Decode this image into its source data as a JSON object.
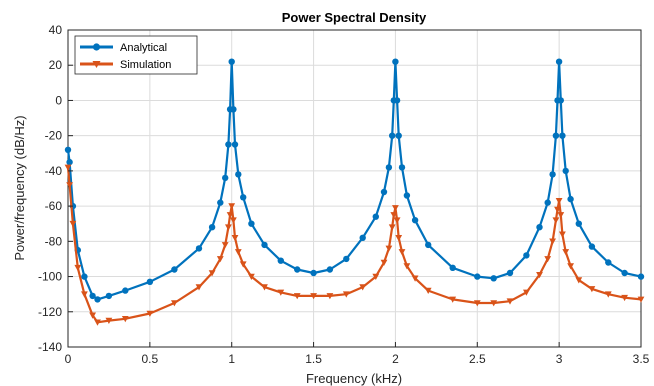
{
  "chart_data": {
    "type": "line",
    "title": "Power Spectral Density",
    "xlabel": "Frequency (kHz)",
    "ylabel": "Power/frequency (dB/Hz)",
    "xlim": [
      0,
      3.5
    ],
    "ylim": [
      -140,
      40
    ],
    "xticks": [
      0,
      0.5,
      1,
      1.5,
      2,
      2.5,
      3,
      3.5
    ],
    "yticks": [
      40,
      20,
      0,
      -20,
      -40,
      -60,
      -80,
      -100,
      -120,
      -140
    ],
    "xtick_labels": [
      "0",
      "0.5",
      "1",
      "1.5",
      "2",
      "2.5",
      "3",
      "3.5"
    ],
    "ytick_labels": [
      "40",
      "20",
      "0",
      "-20",
      "-40",
      "-60",
      "-80",
      "-100",
      "-120",
      "-140"
    ],
    "grid": true,
    "legend_position": "top-left",
    "series": [
      {
        "name": "Analytical",
        "color": "#0072BD",
        "marker": "circle",
        "x": [
          0,
          0.01,
          0.03,
          0.06,
          0.1,
          0.15,
          0.18,
          0.25,
          0.35,
          0.5,
          0.65,
          0.8,
          0.88,
          0.93,
          0.96,
          0.98,
          0.99,
          1.0,
          1.01,
          1.02,
          1.04,
          1.07,
          1.12,
          1.2,
          1.3,
          1.4,
          1.5,
          1.6,
          1.7,
          1.8,
          1.88,
          1.93,
          1.96,
          1.98,
          1.99,
          2.0,
          2.01,
          2.02,
          2.04,
          2.07,
          2.12,
          2.2,
          2.35,
          2.5,
          2.6,
          2.7,
          2.8,
          2.88,
          2.93,
          2.96,
          2.98,
          2.99,
          3.0,
          3.01,
          3.02,
          3.04,
          3.07,
          3.12,
          3.2,
          3.3,
          3.4,
          3.5
        ],
        "y": [
          -28,
          -35,
          -60,
          -85,
          -100,
          -111,
          -113,
          -111,
          -108,
          -103,
          -96,
          -84,
          -72,
          -58,
          -44,
          -25,
          -5,
          22,
          -5,
          -25,
          -42,
          -55,
          -70,
          -82,
          -91,
          -96,
          -98,
          -96,
          -90,
          -78,
          -66,
          -52,
          -38,
          -20,
          0,
          22,
          0,
          -20,
          -38,
          -54,
          -68,
          -82,
          -95,
          -100,
          -101,
          -98,
          -88,
          -72,
          -58,
          -42,
          -20,
          0,
          22,
          0,
          -20,
          -40,
          -56,
          -70,
          -83,
          -92,
          -98,
          -100
        ]
      },
      {
        "name": "Simulation",
        "color": "#D95319",
        "marker": "triangle",
        "x": [
          0,
          0.01,
          0.03,
          0.06,
          0.1,
          0.15,
          0.18,
          0.25,
          0.35,
          0.5,
          0.65,
          0.8,
          0.88,
          0.93,
          0.96,
          0.98,
          0.99,
          1.0,
          1.01,
          1.02,
          1.04,
          1.07,
          1.12,
          1.2,
          1.3,
          1.4,
          1.5,
          1.6,
          1.7,
          1.8,
          1.88,
          1.93,
          1.96,
          1.98,
          1.99,
          2.0,
          2.01,
          2.02,
          2.04,
          2.07,
          2.12,
          2.2,
          2.35,
          2.5,
          2.6,
          2.7,
          2.8,
          2.88,
          2.93,
          2.96,
          2.98,
          2.99,
          3.0,
          3.01,
          3.02,
          3.04,
          3.07,
          3.12,
          3.2,
          3.3,
          3.4,
          3.5
        ],
        "y": [
          -38,
          -48,
          -70,
          -95,
          -110,
          -122,
          -126,
          -125,
          -124,
          -121,
          -115,
          -106,
          -98,
          -90,
          -82,
          -72,
          -65,
          -60,
          -68,
          -78,
          -86,
          -93,
          -100,
          -106,
          -109,
          -111,
          -111,
          -111,
          -110,
          -106,
          -100,
          -92,
          -84,
          -72,
          -65,
          -61,
          -68,
          -78,
          -86,
          -94,
          -101,
          -108,
          -113,
          -115,
          -115,
          -114,
          -109,
          -99,
          -90,
          -80,
          -68,
          -62,
          -57,
          -65,
          -76,
          -86,
          -94,
          -102,
          -107,
          -110,
          -112,
          -113
        ]
      }
    ]
  }
}
